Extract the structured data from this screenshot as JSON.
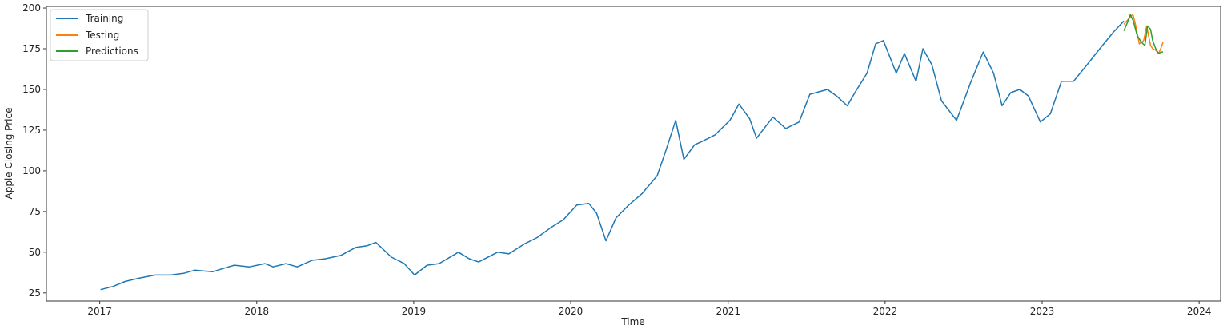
{
  "chart_data": {
    "type": "line",
    "title": "",
    "xlabel": "Time",
    "ylabel": "Apple Closing Price",
    "xlim": [
      "2016-08-30",
      "2024-02-20"
    ],
    "ylim": [
      20,
      201
    ],
    "x_ticks": [
      "2017",
      "2018",
      "2019",
      "2020",
      "2021",
      "2022",
      "2023",
      "2024"
    ],
    "y_ticks": [
      25,
      50,
      75,
      100,
      125,
      150,
      175,
      200
    ],
    "grid": false,
    "legend": {
      "position": "top-left",
      "entries": [
        "Training",
        "Testing",
        "Predictions"
      ]
    },
    "series": [
      {
        "name": "Training",
        "color": "#1f77b4",
        "x": [
          "2017-01-03",
          "2017-02-01",
          "2017-03-01",
          "2017-04-01",
          "2017-05-10",
          "2017-06-15",
          "2017-07-15",
          "2017-08-10",
          "2017-09-20",
          "2017-10-15",
          "2017-11-10",
          "2017-12-15",
          "2018-01-20",
          "2018-02-08",
          "2018-03-10",
          "2018-04-05",
          "2018-05-10",
          "2018-06-10",
          "2018-07-15",
          "2018-08-20",
          "2018-09-15",
          "2018-10-05",
          "2018-11-10",
          "2018-12-10",
          "2019-01-03",
          "2019-02-01",
          "2019-03-01",
          "2019-04-15",
          "2019-05-10",
          "2019-06-01",
          "2019-07-15",
          "2019-08-10",
          "2019-09-15",
          "2019-10-15",
          "2019-11-15",
          "2019-12-15",
          "2020-01-15",
          "2020-02-12",
          "2020-03-01",
          "2020-03-23",
          "2020-04-15",
          "2020-05-15",
          "2020-06-15",
          "2020-07-20",
          "2020-08-10",
          "2020-09-01",
          "2020-09-20",
          "2020-10-15",
          "2020-11-01",
          "2020-12-01",
          "2021-01-05",
          "2021-01-26",
          "2021-02-20",
          "2021-03-08",
          "2021-04-15",
          "2021-05-15",
          "2021-06-15",
          "2021-07-10",
          "2021-08-20",
          "2021-09-10",
          "2021-10-05",
          "2021-10-25",
          "2021-11-20",
          "2021-12-10",
          "2021-12-28",
          "2022-01-27",
          "2022-02-15",
          "2022-03-14",
          "2022-03-30",
          "2022-04-20",
          "2022-05-12",
          "2022-06-16",
          "2022-07-20",
          "2022-08-17",
          "2022-09-10",
          "2022-09-30",
          "2022-10-20",
          "2022-11-10",
          "2022-11-30",
          "2022-12-28",
          "2023-01-20",
          "2023-02-15",
          "2023-03-15",
          "2023-04-15",
          "2023-05-15",
          "2023-06-15",
          "2023-07-10"
        ],
        "y": [
          27,
          29,
          32,
          34,
          36,
          36,
          37,
          39,
          38,
          40,
          42,
          41,
          43,
          41,
          43,
          41,
          45,
          46,
          48,
          53,
          54,
          56,
          47,
          43,
          36,
          42,
          43,
          50,
          46,
          44,
          50,
          49,
          55,
          59,
          65,
          70,
          79,
          80,
          74,
          57,
          71,
          79,
          86,
          97,
          113,
          131,
          107,
          116,
          118,
          122,
          131,
          141,
          132,
          120,
          133,
          126,
          130,
          147,
          150,
          146,
          140,
          149,
          160,
          178,
          180,
          160,
          172,
          155,
          175,
          165,
          143,
          131,
          155,
          173,
          160,
          140,
          148,
          150,
          146,
          130,
          135,
          155,
          155,
          165,
          175,
          185,
          192
        ]
      },
      {
        "name": "Testing",
        "color": "#ff7f0e",
        "x": [
          "2023-07-10",
          "2023-07-20",
          "2023-07-31",
          "2023-08-05",
          "2023-08-15",
          "2023-08-25",
          "2023-09-01",
          "2023-09-10",
          "2023-09-15",
          "2023-09-22",
          "2023-09-29",
          "2023-10-05",
          "2023-10-09"
        ],
        "y": [
          190,
          193,
          196,
          191,
          178,
          180,
          189,
          177,
          175,
          174,
          172,
          176,
          179
        ]
      },
      {
        "name": "Predictions",
        "color": "#2ca02c",
        "x": [
          "2023-07-10",
          "2023-07-18",
          "2023-07-25",
          "2023-08-01",
          "2023-08-10",
          "2023-08-20",
          "2023-08-28",
          "2023-09-03",
          "2023-09-10",
          "2023-09-15",
          "2023-09-22",
          "2023-09-29",
          "2023-10-05",
          "2023-10-09"
        ],
        "y": [
          186,
          191,
          196,
          192,
          183,
          179,
          177,
          189,
          187,
          180,
          175,
          172,
          173,
          173
        ]
      }
    ]
  }
}
